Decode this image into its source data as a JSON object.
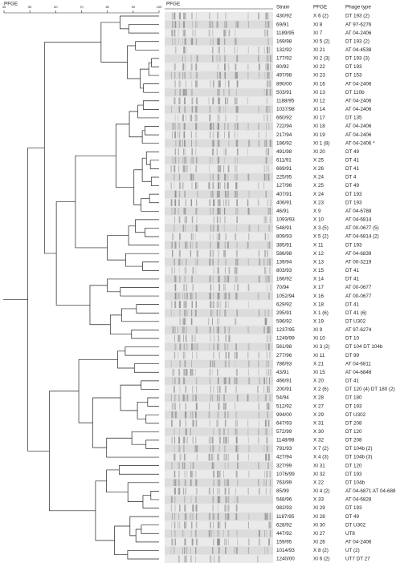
{
  "header": {
    "pfge_left": "PFGE",
    "pfge_gel": "PFGE",
    "columns": [
      "Strain",
      "PFGE",
      "Phage type"
    ]
  },
  "scale": {
    "ticks": [
      40,
      50,
      60,
      70,
      80,
      90,
      100
    ]
  },
  "rows": [
    [
      "430/92",
      "X 6  (2)",
      "DT 193  (2)"
    ],
    [
      "69/91",
      "XI 8",
      "AT 97-6276"
    ],
    [
      "1189/95",
      "XI 7",
      "AT 04-2406"
    ],
    [
      "169/98",
      "XI 5 (2)",
      "DT 193 (2)"
    ],
    [
      "132/92",
      "XI 21",
      "AT 04-4538"
    ],
    [
      "177/92",
      "XI 2 (3)",
      "DT 193 (3)"
    ],
    [
      "80/92",
      "XI 22",
      "DT 193"
    ],
    [
      "497/98",
      "XI 23",
      "DT 153"
    ],
    [
      "890/00",
      "XI 16",
      "AT 04-2406"
    ],
    [
      "503/91",
      "XI 13",
      "DT 110b"
    ],
    [
      "1188/95",
      "XI 12",
      "AT 04-2406"
    ],
    [
      "1037/98",
      "XI 14",
      "AT 04-2406"
    ],
    [
      "660/92",
      "XI 17",
      "DT 135"
    ],
    [
      "722/94",
      "XI 18",
      "AT 04-2406"
    ],
    [
      "217/94",
      "XI 19",
      "AT 04-2406"
    ],
    [
      "186/92",
      "XI 1 (8)",
      "AT 04-2406 *"
    ],
    [
      "491/98",
      "XI 20",
      "DT 49"
    ],
    [
      "611/91",
      "X 25",
      "DT 41"
    ],
    [
      "669/91",
      "X 26",
      "DT 41"
    ],
    [
      "225/95",
      "X 24",
      "DT 4"
    ],
    [
      "127/96",
      "X 25",
      "DT 49"
    ],
    [
      "407/91",
      "X 24",
      "DT 193"
    ],
    [
      "406/91",
      "X 23",
      "DT 193"
    ],
    [
      "46/91",
      "X 9",
      "AT 04-6788"
    ],
    [
      "1093/93",
      "X 10",
      "AT 04-6814"
    ],
    [
      "548/91",
      "X 3 (5)",
      "AT 00-0677 (5)"
    ],
    [
      "809/93",
      "X 5 (2)",
      "AT 04-6814 (2)"
    ],
    [
      "385/91",
      "X 11",
      "DT 193"
    ],
    [
      "586/98",
      "X 12",
      "AT 04-6839"
    ],
    [
      "139/94",
      "X 13",
      "AT 00-3219"
    ],
    [
      "803/93",
      "X 15",
      "DT 41"
    ],
    [
      "166/92",
      "X 14",
      "DT 41"
    ],
    [
      "70/94",
      "X 17",
      "AT 00-0677"
    ],
    [
      "1052/94",
      "X 16",
      "AT 00-0677"
    ],
    [
      "629/92",
      "X 18",
      "DT 41"
    ],
    [
      "295/91",
      "X 1 (6)",
      "DT 41 (6)"
    ],
    [
      "596/92",
      "X 19",
      "DT U302"
    ],
    [
      "1237/95",
      "XI 9",
      "AT 97-6274"
    ],
    [
      "1249/99",
      "XI 10",
      "DT 10"
    ],
    [
      "561/98",
      "XI 3 (2)",
      "DT 104  DT 104b"
    ],
    [
      "277/96",
      "XI 11",
      "DT 99"
    ],
    [
      "786/93",
      "X 21",
      "AT 04-6811"
    ],
    [
      "43/91",
      "XI 15",
      "AT 04-6846"
    ],
    [
      "466/91",
      "X 20",
      "DT 41"
    ],
    [
      "200/91",
      "X 2  (6)",
      "DT 120 (4)  DT 180 (2)"
    ],
    [
      "54/94",
      "X 28",
      "DT 180"
    ],
    [
      "512/92",
      "X 27",
      "DT 193"
    ],
    [
      "994/00",
      "X 29",
      "DT U302"
    ],
    [
      "647/93",
      "X 31",
      "DT 208"
    ],
    [
      "572/99",
      "X 30",
      "DT 120"
    ],
    [
      "1148/98",
      "X 32",
      "DT 208"
    ],
    [
      "791/93",
      "X 7 (2)",
      "DT 104b (2)"
    ],
    [
      "427/94",
      "X 4 (3)",
      "DT 104b (3)"
    ],
    [
      "327/99",
      "XI 31",
      "DT 120"
    ],
    [
      "1076/99",
      "XI 32",
      "DT 193"
    ],
    [
      "763/99",
      "X 22",
      "DT 104b"
    ],
    [
      "85/99",
      "XI 4 (2)",
      "AT 04-6871  AT 04-688"
    ],
    [
      "548/96",
      "X 33",
      "AT 04-6828"
    ],
    [
      "982/93",
      "XI 29",
      "DT 193"
    ],
    [
      "1187/95",
      "XI 28",
      "DT 49"
    ],
    [
      "628/92",
      "XI 30",
      "DT U302"
    ],
    [
      "447/92",
      "XI 27",
      "UT8"
    ],
    [
      "159/95",
      "XI 26",
      "AT 04-2406"
    ],
    [
      "1014/93",
      "X 8 (2)",
      "UT (2)"
    ],
    [
      "1240/00",
      "XI 6 (2)",
      "UT7  DT 27"
    ]
  ]
}
